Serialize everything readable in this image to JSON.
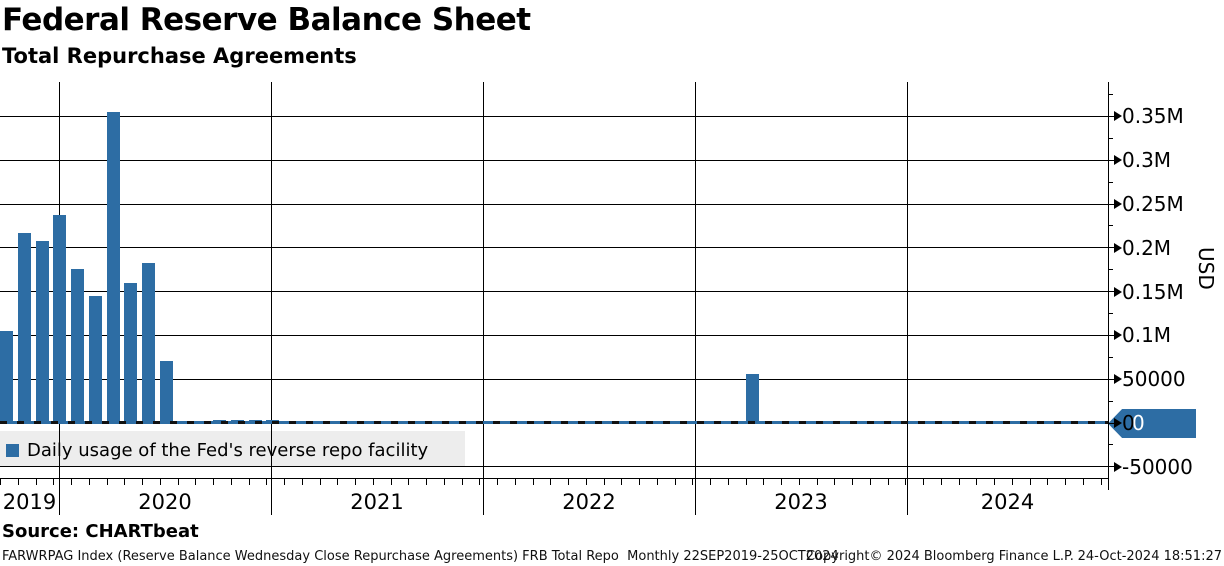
{
  "header": {
    "title": "Federal Reserve Balance Sheet",
    "subtitle": "Total Repurchase Agreements"
  },
  "legend": {
    "label": "Daily usage of the Fed's reverse repo facility",
    "swatch_color": "#2d6da4"
  },
  "source_line": "Source: CHARTbeat",
  "footer": {
    "left": "FARWRPAG Index (Reserve Balance Wednesday Close Repurchase Agreements) FRB Total Repo  Monthly 22SEP2019-25OCT2024",
    "copyright": "Copyright© 2024 Bloomberg Finance L.P.",
    "timestamp": "24-Oct-2024 18:51:27"
  },
  "chart_data": {
    "type": "bar",
    "title": "Federal Reserve Balance Sheet",
    "subtitle": "Total Repurchase Agreements",
    "ylabel": "USD",
    "ylim": [
      -62500,
      390000
    ],
    "grid": true,
    "legend_position": "bottom-left-inside",
    "period": "Monthly",
    "x_start": "22SEP2019",
    "x_end": "25OCT2024",
    "x_year_labels": [
      "2019",
      "2020",
      "2021",
      "2022",
      "2023",
      "2024"
    ],
    "y_ticks": [
      {
        "value": -50000,
        "label": "-50000"
      },
      {
        "value": 0,
        "label": "0"
      },
      {
        "value": 50000,
        "label": "50000"
      },
      {
        "value": 100000,
        "label": "0.1M"
      },
      {
        "value": 150000,
        "label": "0.15M"
      },
      {
        "value": 200000,
        "label": "0.2M"
      },
      {
        "value": 250000,
        "label": "0.25M"
      },
      {
        "value": 300000,
        "label": "0.3M"
      },
      {
        "value": 350000,
        "label": "0.35M"
      }
    ],
    "last_value": 0,
    "last_value_label": "0",
    "zero_line_style": "dashed",
    "series": [
      {
        "name": "Daily usage of the Fed's reverse repo facility",
        "color": "#2d6da4",
        "start_month": "2019-09",
        "end_month": "2024-10",
        "monthly_values": [
          105000,
          217000,
          208000,
          237000,
          176000,
          145000,
          355000,
          160000,
          183000,
          71000,
          0,
          0,
          3000,
          3500,
          3000,
          3500,
          2500,
          0,
          0,
          0,
          0,
          0,
          0,
          0,
          0,
          0,
          0,
          0,
          0,
          0,
          0,
          0,
          0,
          0,
          0,
          0,
          0,
          0,
          0,
          0,
          0,
          0,
          56000,
          0,
          0,
          0,
          0,
          0,
          0,
          0,
          0,
          0,
          0,
          0,
          0,
          0,
          0,
          0,
          0,
          0,
          0,
          0
        ]
      }
    ]
  }
}
